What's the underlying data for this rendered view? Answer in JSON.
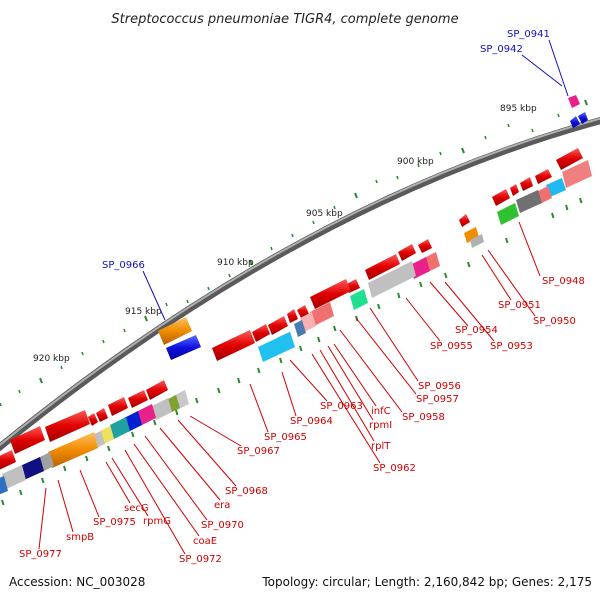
{
  "title": "Streptococcus pneumoniae TIGR4, complete genome",
  "footer": {
    "accession": "Accession: NC_003028",
    "summary": "Topology: circular; Length: 2,160,842 bp; Genes: 2,175"
  },
  "colors": {
    "forward_gene": "#e00000",
    "label_red": "#d00000",
    "label_blue": "#1010c0",
    "backbone": "#8a8a8a",
    "tick": "#2a8a2a"
  },
  "tick_labels": [
    "895 kbp",
    "900 kbp",
    "905 kbp",
    "910 kbp",
    "915 kbp",
    "920 kbp"
  ],
  "gene_labels": [
    {
      "text": "SP_0941",
      "color": "blue"
    },
    {
      "text": "SP_0942",
      "color": "blue"
    },
    {
      "text": "SP_0966",
      "color": "blue"
    },
    {
      "text": "SP_0948",
      "color": "red"
    },
    {
      "text": "SP_0951",
      "color": "red"
    },
    {
      "text": "SP_0950",
      "color": "red"
    },
    {
      "text": "SP_0954",
      "color": "red"
    },
    {
      "text": "SP_0953",
      "color": "red"
    },
    {
      "text": "SP_0955",
      "color": "red"
    },
    {
      "text": "SP_0956",
      "color": "red"
    },
    {
      "text": "SP_0957",
      "color": "red"
    },
    {
      "text": "SP_0958",
      "color": "red"
    },
    {
      "text": "infC",
      "color": "red"
    },
    {
      "text": "rpmI",
      "color": "red"
    },
    {
      "text": "rplT",
      "color": "red"
    },
    {
      "text": "SP_0962",
      "color": "red"
    },
    {
      "text": "SP_0963",
      "color": "red"
    },
    {
      "text": "SP_0964",
      "color": "red"
    },
    {
      "text": "SP_0965",
      "color": "red"
    },
    {
      "text": "SP_0967",
      "color": "red"
    },
    {
      "text": "SP_0968",
      "color": "red"
    },
    {
      "text": "era",
      "color": "red"
    },
    {
      "text": "SP_0970",
      "color": "red"
    },
    {
      "text": "coaE",
      "color": "red"
    },
    {
      "text": "SP_0972",
      "color": "red"
    },
    {
      "text": "rpmG",
      "color": "red"
    },
    {
      "text": "secG",
      "color": "red"
    },
    {
      "text": "SP_0975",
      "color": "red"
    },
    {
      "text": "smpB",
      "color": "red"
    },
    {
      "text": "SP_0977",
      "color": "red"
    }
  ]
}
